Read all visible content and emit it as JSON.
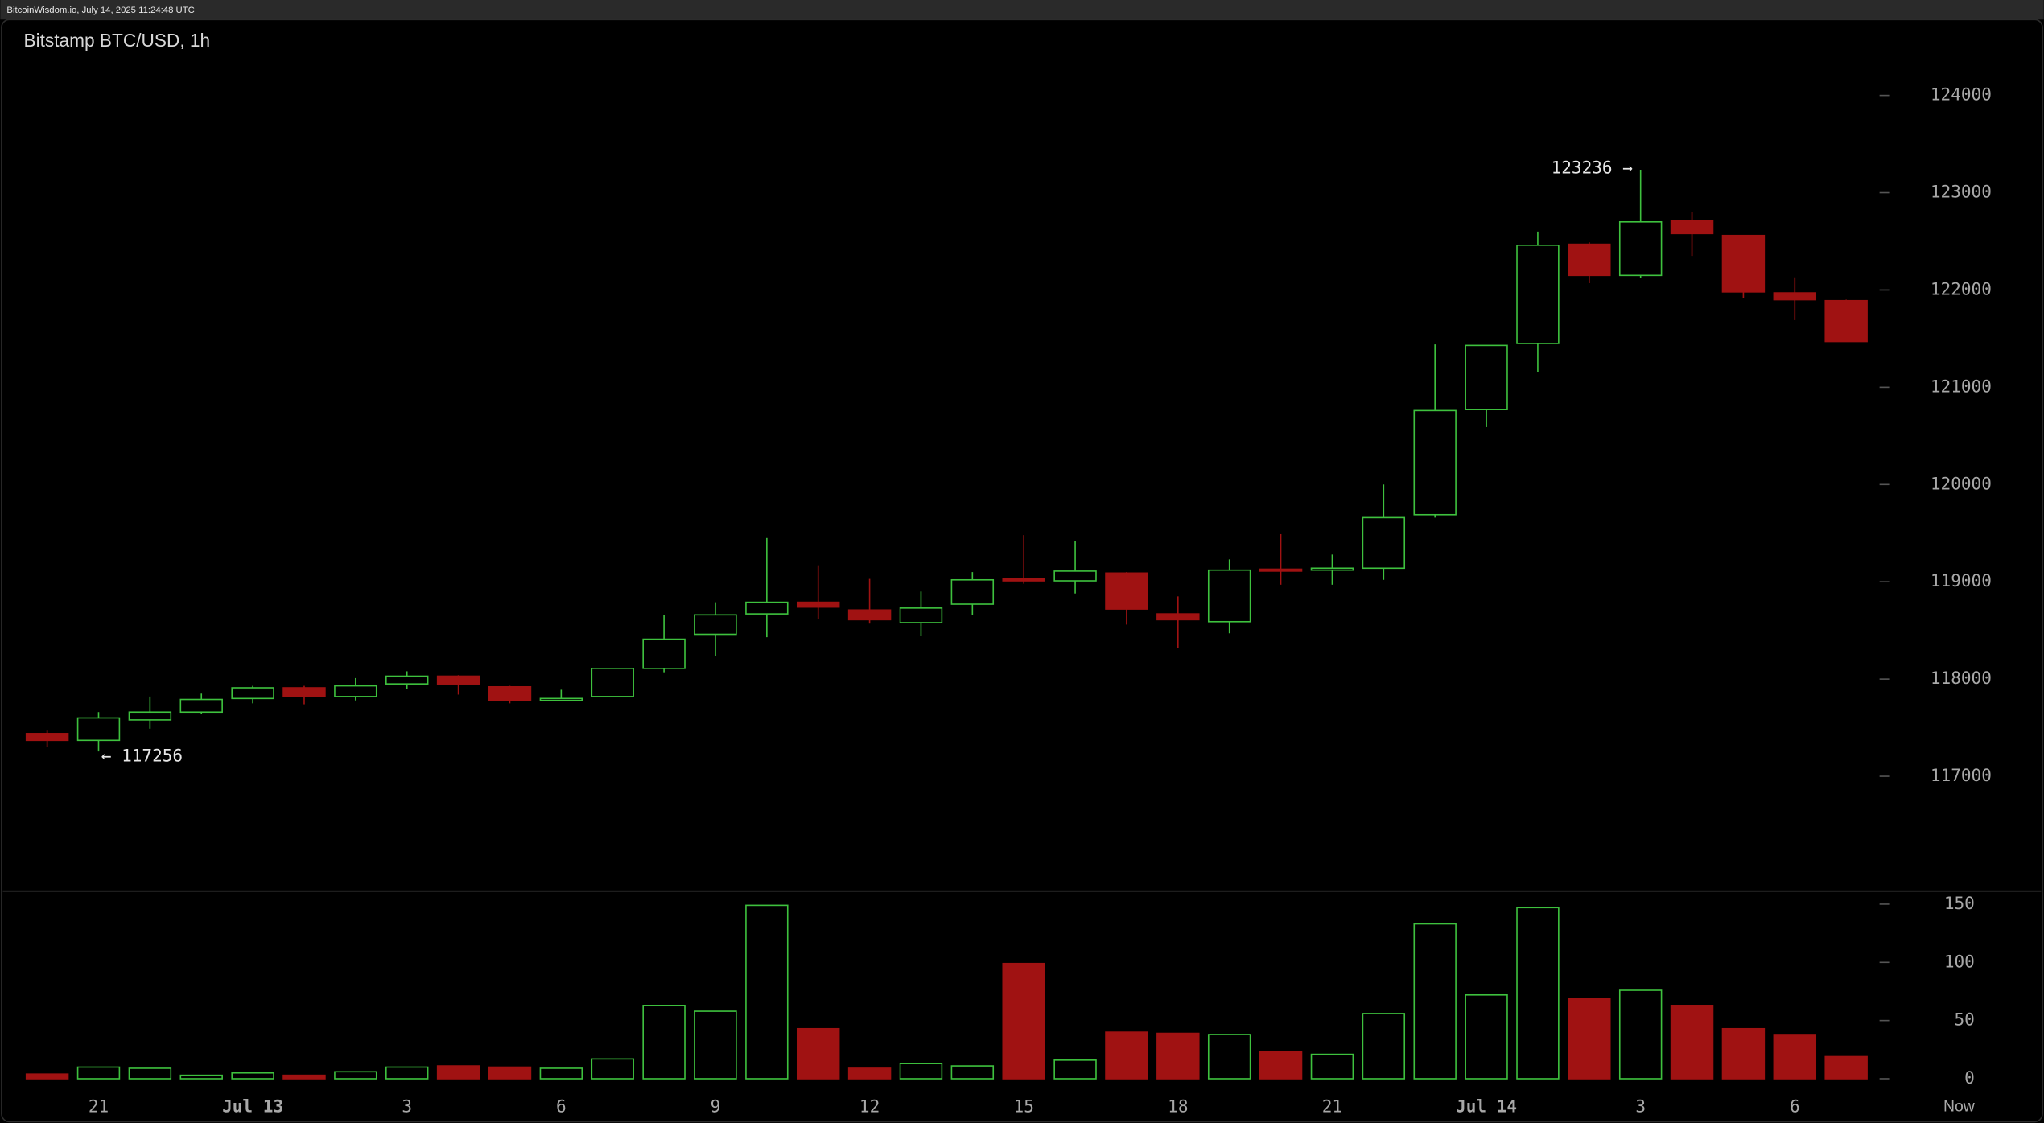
{
  "header": "BitcoinWisdom.io, July 14, 2025 11:24:48 UTC",
  "chart_data": {
    "type": "candlestick",
    "title": "Bitstamp BTC/USD, 1h",
    "categories": [
      null,
      "21",
      null,
      null,
      "Jul 13",
      null,
      null,
      "3",
      null,
      null,
      "6",
      null,
      null,
      "9",
      null,
      null,
      "12",
      null,
      null,
      "15",
      null,
      null,
      "18",
      null,
      null,
      "21",
      null,
      null,
      "Jul 14",
      null,
      null,
      "3",
      null,
      null,
      "6",
      null
    ],
    "now_label": "Now",
    "open": [
      117440,
      117370,
      117580,
      117660,
      117800,
      117910,
      117820,
      117950,
      118030,
      117920,
      117780,
      117820,
      118110,
      118460,
      118670,
      118790,
      118710,
      118580,
      118770,
      119030,
      119010,
      119090,
      118670,
      118590,
      119130,
      119120,
      119140,
      119690,
      120770,
      121450,
      122470,
      122150,
      122710,
      122560,
      121970,
      121890
    ],
    "high": [
      117470,
      117660,
      117820,
      117850,
      117930,
      117930,
      118010,
      118080,
      118040,
      117930,
      117890,
      118110,
      118660,
      118790,
      119450,
      119170,
      119030,
      118900,
      119100,
      119480,
      119420,
      119100,
      118850,
      119230,
      119490,
      119280,
      120000,
      121440,
      121430,
      122600,
      122490,
      123236,
      122800,
      122560,
      122130,
      121900
    ],
    "low": [
      117300,
      117256,
      117490,
      117640,
      117750,
      117740,
      117780,
      117900,
      117840,
      117750,
      117770,
      117820,
      118070,
      118240,
      118430,
      118620,
      118570,
      118440,
      118660,
      118980,
      118880,
      118560,
      118320,
      118470,
      118970,
      118970,
      119020,
      119660,
      120590,
      121160,
      122070,
      122120,
      122350,
      121920,
      121690,
      121470
    ],
    "close": [
      117370,
      117600,
      117660,
      117790,
      117910,
      117820,
      117930,
      118030,
      117950,
      117780,
      117800,
      118110,
      118410,
      118660,
      118790,
      118740,
      118610,
      118730,
      119020,
      119010,
      119110,
      118720,
      118610,
      119120,
      119110,
      119140,
      119660,
      120760,
      121430,
      122460,
      122150,
      122700,
      122580,
      121980,
      121900,
      121470
    ],
    "volume": [
      4,
      10,
      9,
      3,
      5,
      3,
      6,
      10,
      11,
      10,
      9,
      17,
      63,
      58,
      149,
      43,
      9,
      13,
      11,
      99,
      16,
      40,
      39,
      38,
      23,
      21,
      56,
      133,
      72,
      147,
      69,
      76,
      63,
      43,
      38,
      19
    ],
    "up_color": "#3ec13e",
    "down_color": "#a01212",
    "ylim": [
      115820,
      124780
    ],
    "yticks": [
      117000,
      118000,
      119000,
      120000,
      121000,
      122000,
      123000,
      124000
    ],
    "volume_ylim": [
      -13.4,
      161.2
    ],
    "volume_ticks": [
      0,
      50,
      100,
      150
    ],
    "annotations": [
      {
        "label": "123236 →",
        "value": 123236
      },
      {
        "label": "← 117256",
        "value": 117256
      }
    ]
  }
}
